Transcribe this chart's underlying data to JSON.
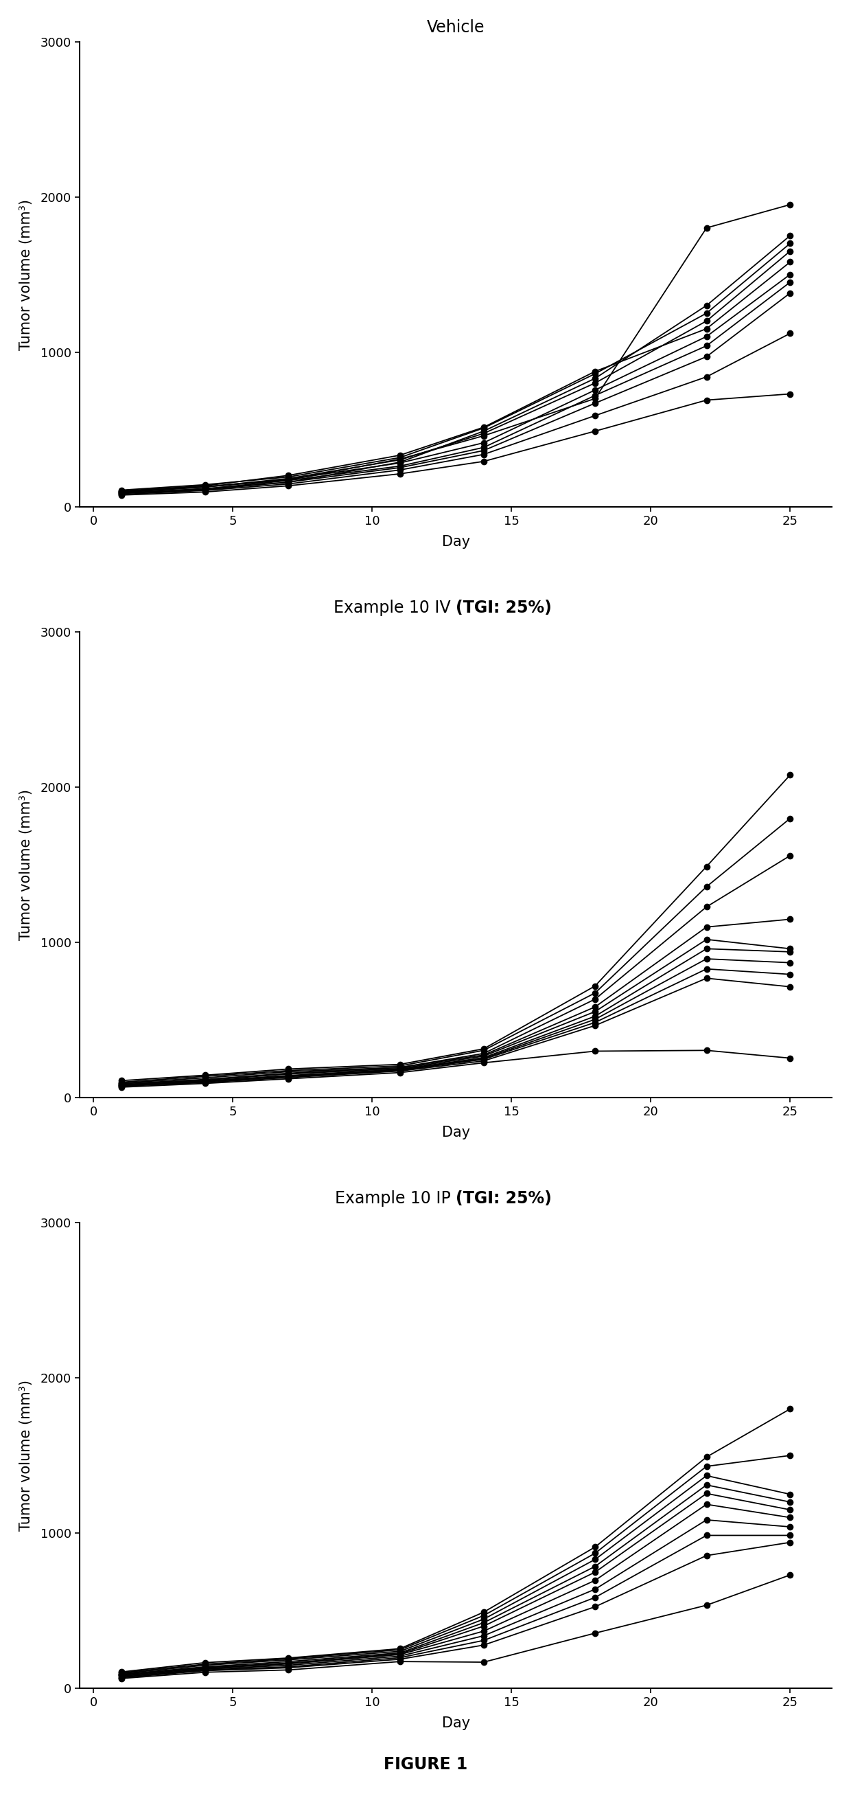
{
  "panels": [
    {
      "title_normal": "Vehicle",
      "title_bold_part": null,
      "days": [
        1,
        4,
        7,
        11,
        14,
        18,
        22,
        25
      ],
      "series": [
        [
          100,
          130,
          175,
          310,
          460,
          700,
          1800,
          1950
        ],
        [
          90,
          120,
          160,
          290,
          490,
          830,
          1300,
          1750
        ],
        [
          110,
          145,
          195,
          320,
          510,
          860,
          1250,
          1700
        ],
        [
          95,
          130,
          185,
          305,
          475,
          800,
          1200,
          1650
        ],
        [
          105,
          138,
          205,
          335,
          515,
          875,
          1150,
          1580
        ],
        [
          100,
          132,
          180,
          285,
          415,
          755,
          1100,
          1500
        ],
        [
          92,
          118,
          172,
          265,
          385,
          720,
          1040,
          1450
        ],
        [
          88,
          112,
          162,
          255,
          365,
          670,
          970,
          1380
        ],
        [
          82,
          108,
          150,
          240,
          340,
          590,
          840,
          1120
        ],
        [
          78,
          98,
          138,
          215,
          295,
          490,
          690,
          730
        ]
      ]
    },
    {
      "title_normal": "Example 10 IV ",
      "title_bold_part": "(TGI: 25%)",
      "days": [
        1,
        4,
        7,
        11,
        14,
        18,
        22,
        25
      ],
      "series": [
        [
          110,
          145,
          185,
          215,
          315,
          720,
          1490,
          2080
        ],
        [
          100,
          138,
          175,
          205,
          305,
          675,
          1360,
          1800
        ],
        [
          95,
          128,
          168,
          195,
          285,
          635,
          1230,
          1560
        ],
        [
          90,
          118,
          158,
          195,
          275,
          585,
          1100,
          1150
        ],
        [
          85,
          113,
          153,
          188,
          268,
          555,
          1020,
          960
        ],
        [
          80,
          108,
          143,
          183,
          258,
          525,
          960,
          940
        ],
        [
          79,
          106,
          140,
          180,
          252,
          505,
          895,
          870
        ],
        [
          77,
          103,
          136,
          176,
          247,
          485,
          830,
          795
        ],
        [
          74,
          98,
          130,
          172,
          237,
          465,
          770,
          715
        ],
        [
          68,
          92,
          122,
          162,
          225,
          300,
          305,
          255
        ]
      ]
    },
    {
      "title_normal": "Example 10 IP ",
      "title_bold_part": "(TGI: 25%)",
      "days": [
        1,
        4,
        7,
        11,
        14,
        18,
        22,
        25
      ],
      "series": [
        [
          105,
          165,
          195,
          255,
          490,
          910,
          1490,
          1800
        ],
        [
          100,
          155,
          190,
          248,
          468,
          870,
          1430,
          1500
        ],
        [
          95,
          148,
          183,
          238,
          445,
          830,
          1370,
          1250
        ],
        [
          90,
          138,
          172,
          228,
          422,
          785,
          1310,
          1200
        ],
        [
          88,
          133,
          163,
          222,
          400,
          748,
          1255,
          1150
        ],
        [
          83,
          128,
          157,
          217,
          368,
          695,
          1185,
          1100
        ],
        [
          78,
          123,
          148,
          207,
          338,
          638,
          1085,
          1040
        ],
        [
          73,
          118,
          138,
          197,
          308,
          585,
          985,
          985
        ],
        [
          68,
          113,
          132,
          187,
          278,
          525,
          855,
          940
        ],
        [
          63,
          103,
          118,
          172,
          168,
          355,
          535,
          730
        ]
      ]
    }
  ],
  "xlabel": "Day",
  "ylabel": "Tumor volume (mm³)",
  "ylim": [
    0,
    3000
  ],
  "yticks": [
    0,
    1000,
    2000,
    3000
  ],
  "xticks": [
    0,
    5,
    10,
    15,
    20,
    25
  ],
  "xlim": [
    -0.5,
    26.5
  ],
  "line_color": "#000000",
  "marker": "o",
  "marker_size": 6,
  "line_width": 1.3,
  "figure_label": "FIGURE 1",
  "bg_color": "white",
  "title_fontsize": 17,
  "label_fontsize": 15,
  "tick_fontsize": 13,
  "figure_label_fontsize": 17,
  "spine_linewidth": 1.5
}
